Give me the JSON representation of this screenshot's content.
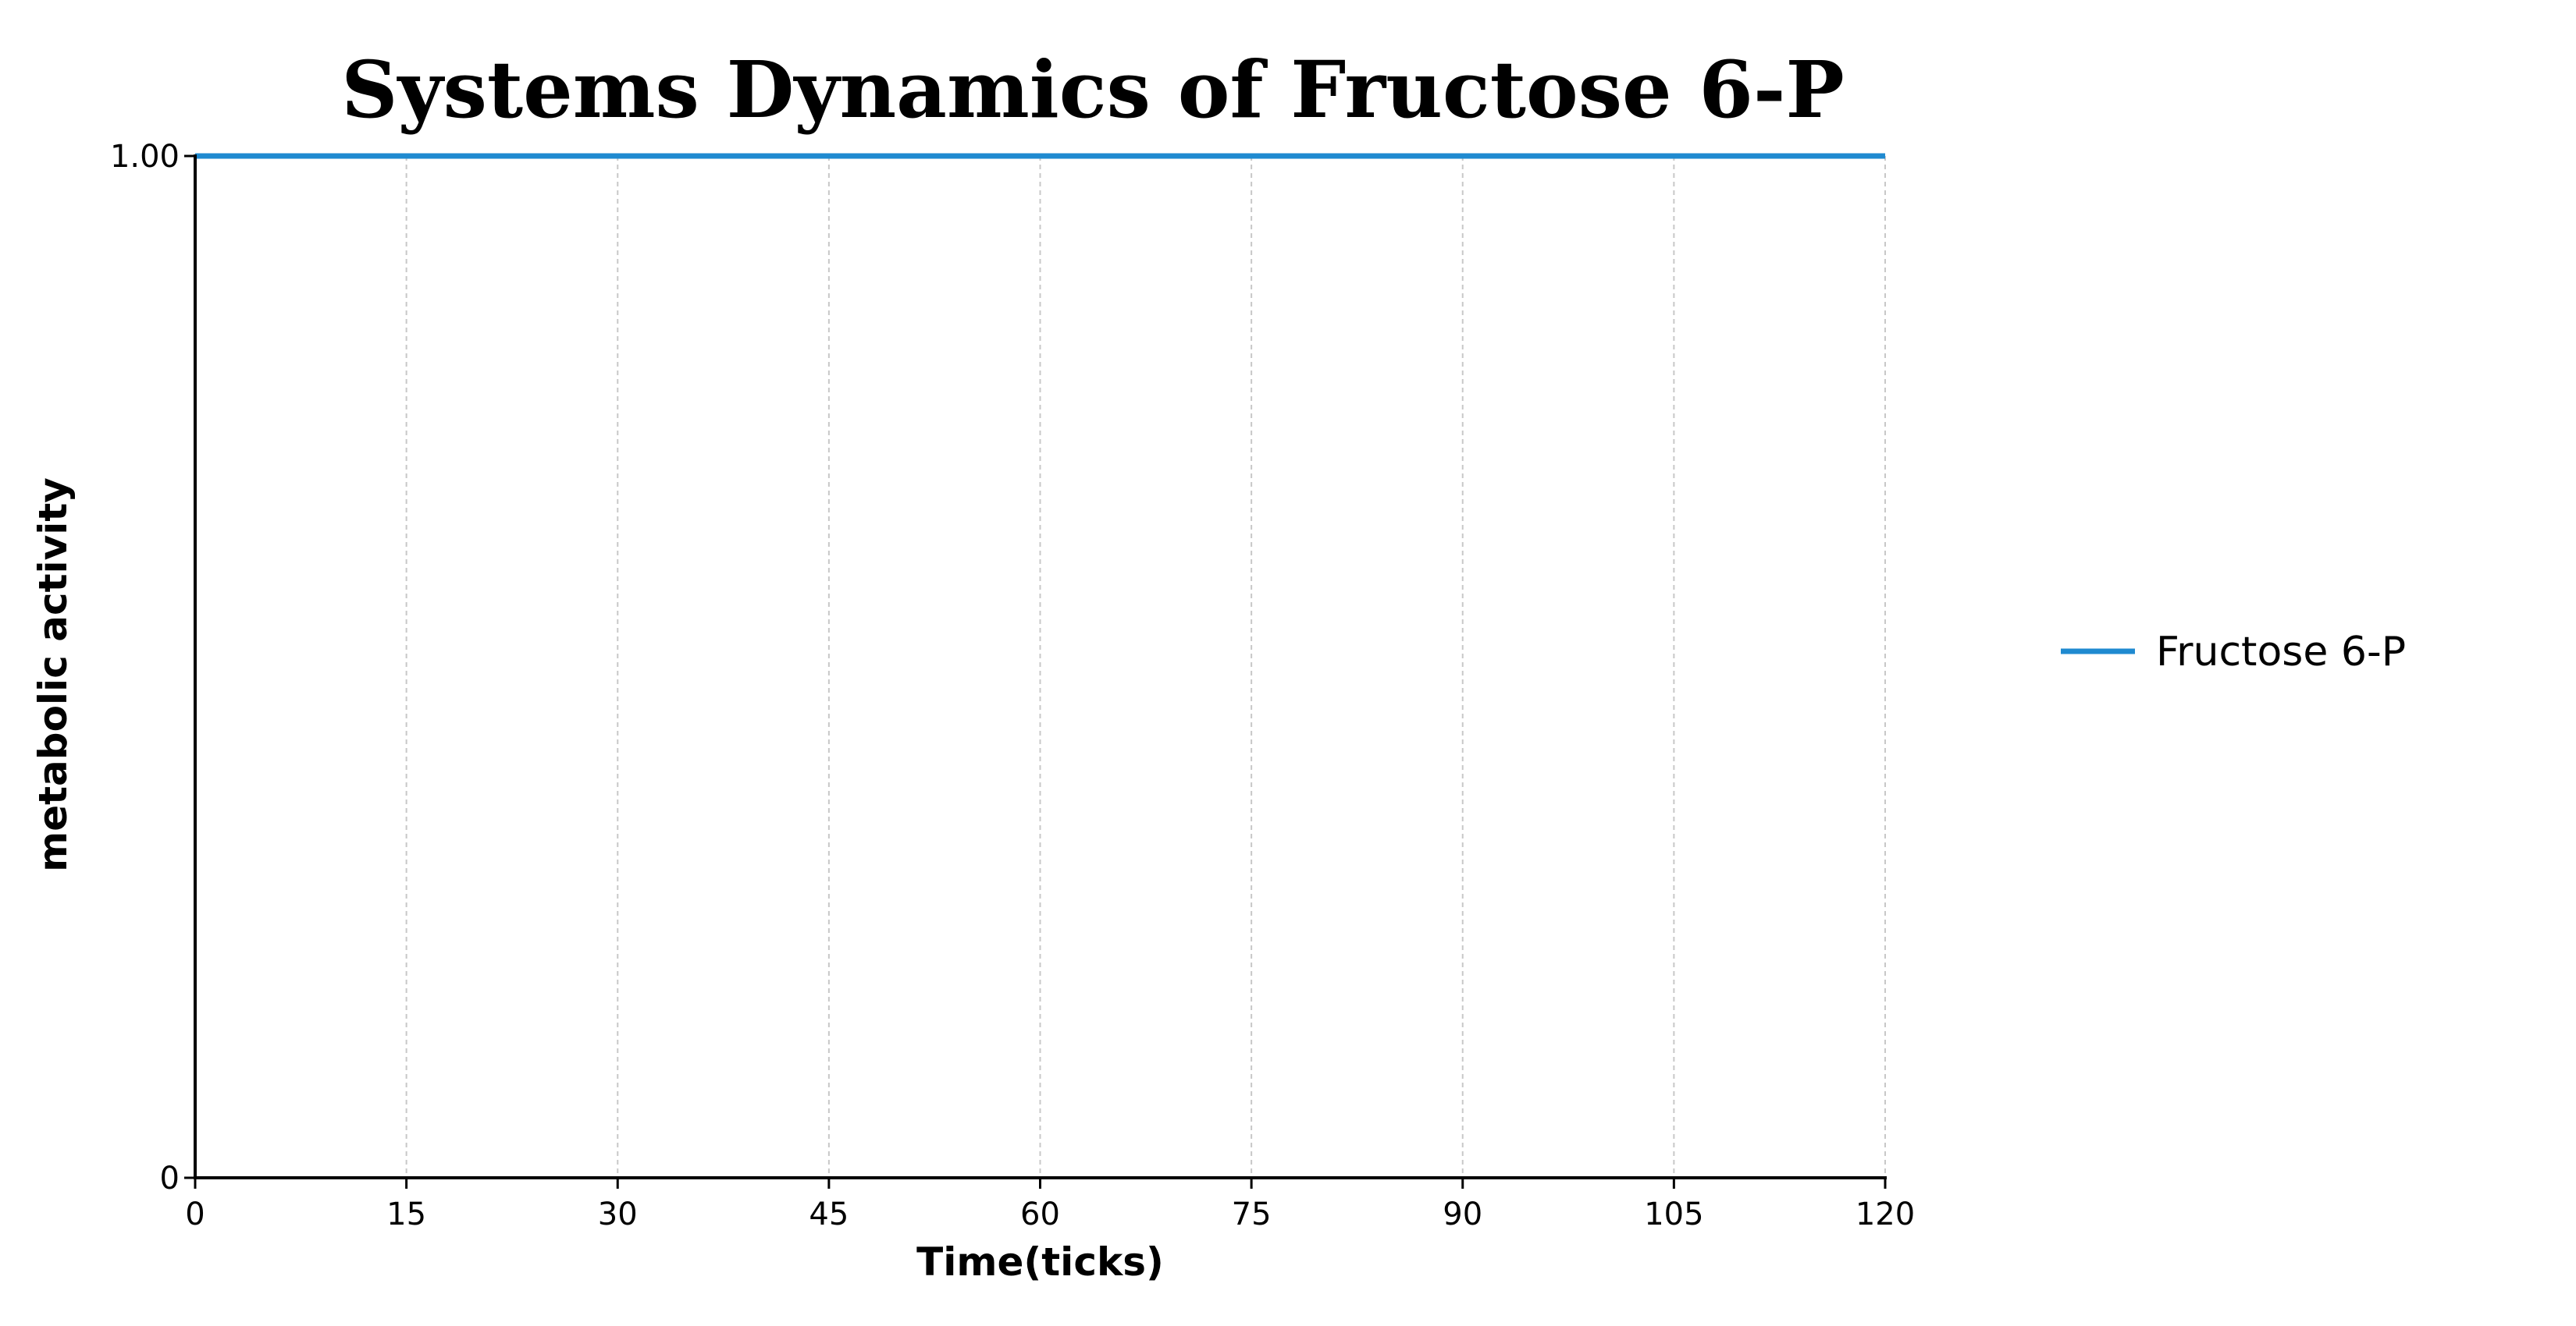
{
  "chart_data": {
    "type": "line",
    "title": "Systems Dynamics of Fructose 6-P",
    "xlabel": "Time(ticks)",
    "ylabel": "metabolic activity",
    "xlim": [
      0,
      120
    ],
    "ylim": [
      0,
      1
    ],
    "x_ticks": [
      "0",
      "15",
      "30",
      "45",
      "60",
      "75",
      "90",
      "105",
      "120"
    ],
    "y_ticks": [
      "0",
      "1.00"
    ],
    "grid": "vertical dashed",
    "legend_position": "right",
    "series": [
      {
        "name": "Fructose 6-P",
        "color": "#1f8ad0",
        "x": [
          0,
          15,
          30,
          45,
          60,
          75,
          90,
          105,
          120
        ],
        "y": [
          1,
          1,
          1,
          1,
          1,
          1,
          1,
          1,
          1
        ]
      }
    ]
  }
}
